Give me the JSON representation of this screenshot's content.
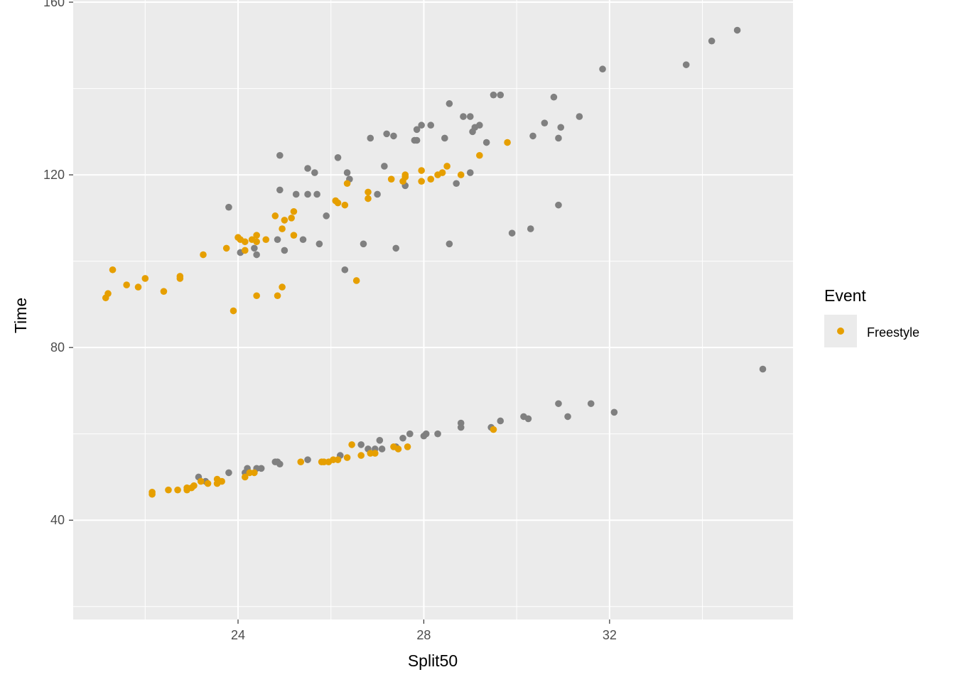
{
  "chart_data": {
    "type": "scatter",
    "title": "",
    "xlabel": "Split50",
    "ylabel": "Time",
    "xlim": [
      20.45,
      35.95
    ],
    "ylim": [
      17,
      160.5
    ],
    "x_ticks": [
      24,
      28,
      32
    ],
    "y_ticks": [
      40,
      80,
      120,
      160
    ],
    "grid": true,
    "background": "#ebebeb",
    "legend": {
      "title": "Event",
      "placement": "right"
    },
    "series": [
      {
        "name": "",
        "color": "#808080",
        "points": [
          [
            23.8,
            112.5
          ],
          [
            24.05,
            102
          ],
          [
            24.35,
            103
          ],
          [
            24.4,
            101.5
          ],
          [
            24.85,
            105
          ],
          [
            24.9,
            116.5
          ],
          [
            24.9,
            124.5
          ],
          [
            25.0,
            102.5
          ],
          [
            25.25,
            115.5
          ],
          [
            25.4,
            105
          ],
          [
            25.5,
            121.5
          ],
          [
            25.5,
            115.5
          ],
          [
            25.65,
            120.5
          ],
          [
            25.7,
            115.5
          ],
          [
            25.75,
            104
          ],
          [
            25.9,
            110.5
          ],
          [
            26.15,
            124
          ],
          [
            26.3,
            98
          ],
          [
            26.35,
            120.5
          ],
          [
            26.4,
            119
          ],
          [
            26.7,
            104
          ],
          [
            26.85,
            128.5
          ],
          [
            27.0,
            115.5
          ],
          [
            27.15,
            122
          ],
          [
            27.2,
            129.5
          ],
          [
            27.35,
            129
          ],
          [
            27.4,
            103
          ],
          [
            27.6,
            117.5
          ],
          [
            27.8,
            128
          ],
          [
            27.85,
            128
          ],
          [
            27.85,
            130.5
          ],
          [
            27.95,
            131.5
          ],
          [
            28.15,
            131.5
          ],
          [
            28.45,
            128.5
          ],
          [
            28.55,
            136.5
          ],
          [
            28.55,
            104
          ],
          [
            28.7,
            118
          ],
          [
            28.85,
            133.5
          ],
          [
            29.0,
            133.5
          ],
          [
            29.0,
            120.5
          ],
          [
            29.05,
            130
          ],
          [
            29.1,
            131
          ],
          [
            29.2,
            131.5
          ],
          [
            29.35,
            127.5
          ],
          [
            29.5,
            138.5
          ],
          [
            29.65,
            138.5
          ],
          [
            29.9,
            106.5
          ],
          [
            30.3,
            107.5
          ],
          [
            30.35,
            129
          ],
          [
            30.6,
            132
          ],
          [
            30.8,
            138
          ],
          [
            30.9,
            113
          ],
          [
            30.9,
            128.5
          ],
          [
            30.95,
            131
          ],
          [
            31.35,
            133.5
          ],
          [
            31.85,
            144.5
          ],
          [
            33.65,
            145.5
          ],
          [
            34.2,
            151
          ],
          [
            34.75,
            153.5
          ],
          [
            23.15,
            50
          ],
          [
            23.3,
            49
          ],
          [
            23.8,
            51
          ],
          [
            24.15,
            51
          ],
          [
            24.2,
            52
          ],
          [
            24.4,
            52
          ],
          [
            24.5,
            52
          ],
          [
            24.8,
            53.5
          ],
          [
            24.85,
            53.5
          ],
          [
            24.9,
            53
          ],
          [
            25.5,
            54
          ],
          [
            26.2,
            55
          ],
          [
            26.65,
            57.5
          ],
          [
            26.8,
            56.5
          ],
          [
            26.95,
            56.5
          ],
          [
            27.05,
            58.5
          ],
          [
            27.1,
            56.5
          ],
          [
            27.4,
            57
          ],
          [
            27.55,
            59
          ],
          [
            27.7,
            60
          ],
          [
            28.0,
            59.5
          ],
          [
            28.05,
            60
          ],
          [
            28.3,
            60
          ],
          [
            28.8,
            62.5
          ],
          [
            28.8,
            61.5
          ],
          [
            29.45,
            61.5
          ],
          [
            29.65,
            63
          ],
          [
            30.15,
            64
          ],
          [
            30.25,
            63.5
          ],
          [
            30.9,
            67
          ],
          [
            31.1,
            64
          ],
          [
            31.6,
            67
          ],
          [
            32.1,
            65
          ],
          [
            35.3,
            75
          ]
        ]
      },
      {
        "name": "Freestyle",
        "color": "#e69f00",
        "points": [
          [
            21.15,
            91.5
          ],
          [
            21.2,
            92.5
          ],
          [
            21.3,
            98
          ],
          [
            21.6,
            94.5
          ],
          [
            21.85,
            94
          ],
          [
            22.0,
            96
          ],
          [
            22.4,
            93
          ],
          [
            22.75,
            96.5
          ],
          [
            22.75,
            96
          ],
          [
            23.25,
            101.5
          ],
          [
            23.75,
            103
          ],
          [
            23.9,
            88.5
          ],
          [
            24.0,
            105.5
          ],
          [
            24.05,
            105
          ],
          [
            24.15,
            104.5
          ],
          [
            24.15,
            102.5
          ],
          [
            24.3,
            105
          ],
          [
            24.4,
            106
          ],
          [
            24.4,
            104.5
          ],
          [
            24.4,
            92
          ],
          [
            24.6,
            105
          ],
          [
            24.8,
            110.5
          ],
          [
            24.85,
            92
          ],
          [
            24.95,
            107.5
          ],
          [
            24.95,
            94
          ],
          [
            25.0,
            109.5
          ],
          [
            25.15,
            110
          ],
          [
            25.2,
            111.5
          ],
          [
            25.2,
            106
          ],
          [
            26.1,
            114
          ],
          [
            26.15,
            113.5
          ],
          [
            26.3,
            113
          ],
          [
            26.35,
            118
          ],
          [
            26.55,
            95.5
          ],
          [
            26.8,
            114.5
          ],
          [
            26.8,
            116
          ],
          [
            27.3,
            119
          ],
          [
            27.55,
            118.5
          ],
          [
            27.6,
            119.5
          ],
          [
            27.6,
            120
          ],
          [
            27.95,
            118.5
          ],
          [
            27.95,
            121
          ],
          [
            28.15,
            119
          ],
          [
            28.3,
            120
          ],
          [
            28.4,
            120.5
          ],
          [
            28.5,
            122
          ],
          [
            28.8,
            120
          ],
          [
            29.2,
            124.5
          ],
          [
            29.8,
            127.5
          ],
          [
            22.15,
            46.5
          ],
          [
            22.15,
            46
          ],
          [
            22.5,
            47
          ],
          [
            22.7,
            47
          ],
          [
            22.9,
            47
          ],
          [
            22.9,
            47.5
          ],
          [
            23.0,
            47.5
          ],
          [
            23.05,
            48
          ],
          [
            23.2,
            49
          ],
          [
            23.35,
            48.5
          ],
          [
            23.55,
            49.5
          ],
          [
            23.55,
            48.5
          ],
          [
            23.65,
            49
          ],
          [
            24.15,
            50
          ],
          [
            24.25,
            51
          ],
          [
            24.35,
            51
          ],
          [
            25.35,
            53.5
          ],
          [
            25.8,
            53.5
          ],
          [
            25.85,
            53.5
          ],
          [
            25.95,
            53.5
          ],
          [
            26.05,
            54
          ],
          [
            26.15,
            54
          ],
          [
            26.35,
            54.5
          ],
          [
            26.45,
            57.5
          ],
          [
            26.65,
            55
          ],
          [
            26.85,
            55.5
          ],
          [
            26.95,
            55.5
          ],
          [
            27.35,
            57
          ],
          [
            27.45,
            56.5
          ],
          [
            27.65,
            57
          ],
          [
            29.5,
            61
          ]
        ]
      }
    ]
  }
}
